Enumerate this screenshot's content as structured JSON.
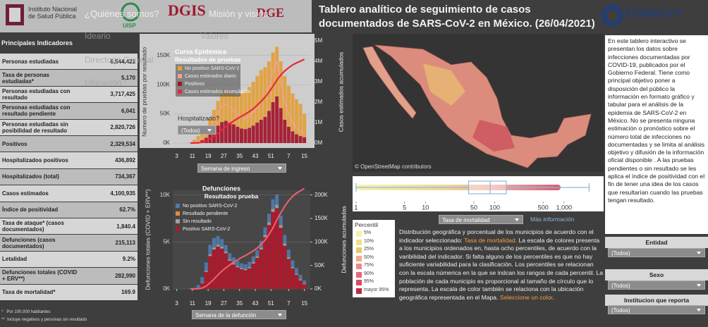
{
  "header": {
    "institutions": [
      "Instituto Nacional de Salud Pública",
      "UISP",
      "DGIS",
      "DGE",
      "CONACYT"
    ],
    "menu": [
      "¿Quiénes somos?",
      "Misión y visión",
      "Ideario",
      "Valores",
      "Directorio General",
      "Ubicación"
    ],
    "title": "Tablero analítico de seguimiento de casos documentados de SARS-CoV-2 en México. (26/04/2021)"
  },
  "indicators": {
    "title": "Principales Indicadores",
    "rows": [
      [
        "Personas estudiadas",
        "6,544,421"
      ],
      [
        "Tasa de personas estudiadas*",
        "5,170"
      ],
      [
        "Personas estudiadas con resultado",
        "3,717,425"
      ],
      [
        "Personas estudiadas con resultado pendiente",
        "6,041"
      ],
      [
        "Personas estudiadas sin posibilidad de resultado",
        "2,820,726"
      ],
      [
        "Positivos",
        "2,329,534"
      ],
      [
        "Hospitalizados positivos",
        "436,892"
      ],
      [
        "Hospitalizados (total)",
        "734,367"
      ],
      [
        "Casos estimados",
        "4,100,935"
      ],
      [
        "Índice de positividad",
        "62.7%"
      ],
      [
        "Tasa de ataque* (casos documentados)",
        "1,840.4"
      ],
      [
        "Defunciones (casos documentados)",
        "215,113"
      ],
      [
        "Letalidad",
        "9.2%"
      ],
      [
        "Defunciones totales (COVID + ERV**)",
        "282,990"
      ],
      [
        "Tasa de mortalidad*",
        "169.9"
      ]
    ],
    "footnotes": [
      "*   Por 100,000 habitantes",
      "**  Incluye negativos y personas sin resultado"
    ]
  },
  "chart_data": [
    {
      "type": "bar",
      "title": "Curva Epidémica",
      "subtitle": "Resultados de pruebas",
      "ylabel": "Numero de pruebas por resultado",
      "y2label": "Casos estimados acumulados",
      "x": [
        10,
        12,
        14,
        16,
        18,
        20,
        22,
        24,
        26,
        28,
        30,
        32,
        34,
        36,
        38,
        40,
        42,
        44,
        46,
        48,
        50,
        52,
        54,
        56,
        58,
        60,
        62,
        64,
        66,
        68
      ],
      "xlim": [
        1,
        71
      ],
      "xticks": [
        3,
        11,
        19,
        27,
        35,
        43,
        51,
        {
          "value": 60,
          "label": "7"
        },
        {
          "value": 68,
          "label": "15"
        }
      ],
      "ylim": [
        0,
        175000
      ],
      "yticks": [
        {
          "value": 0,
          "label": "0K"
        },
        {
          "value": 50000,
          "label": "50K"
        },
        {
          "value": 100000,
          "label": "100K"
        },
        {
          "value": 150000,
          "label": "150K"
        }
      ],
      "y2lim": [
        0,
        5000000
      ],
      "y2ticks": [
        {
          "value": 0,
          "label": "0M"
        },
        {
          "value": 1000000,
          "label": "1M"
        },
        {
          "value": 2000000,
          "label": "2M"
        },
        {
          "value": 3000000,
          "label": "3M"
        },
        {
          "value": 4000000,
          "label": "4M"
        },
        {
          "value": 5000000,
          "label": "5M"
        }
      ],
      "grid": true,
      "series": [
        {
          "name": "No positivo SARS-CoV-2",
          "color": "#e3a03c",
          "mark": "bar",
          "values": [
            1000,
            5000,
            10000,
            15000,
            20000,
            28000,
            35000,
            42000,
            48000,
            50000,
            50000,
            52000,
            55000,
            60000,
            65000,
            70000,
            75000,
            80000,
            85000,
            85000,
            85000,
            85000,
            85000,
            80000,
            75000,
            70000,
            65000,
            60000,
            55000,
            40000
          ]
        },
        {
          "name": "Casos estimados diario",
          "color": "#f0a0a0",
          "mark": "line",
          "values": [
            175,
            875,
            3500,
            8750,
            15750,
            26250,
            38500,
            52500,
            63000,
            66500,
            61250,
            56000,
            49000,
            43750,
            42000,
            45500,
            52500,
            61250,
            70000,
            78750,
            96250,
            122500,
            140000,
            105000,
            70000,
            49000,
            35000,
            26250,
            21000,
            17500
          ]
        },
        {
          "name": "Positivos",
          "color": "#a3142a",
          "mark": "bar",
          "values": [
            100,
            500,
            2000,
            5000,
            9000,
            15000,
            22000,
            30000,
            36000,
            38000,
            35000,
            32000,
            28000,
            25000,
            24000,
            26000,
            30000,
            35000,
            40000,
            45000,
            55000,
            70000,
            80000,
            60000,
            40000,
            28000,
            20000,
            15000,
            12000,
            10000
          ]
        },
        {
          "name": "Casos estimados acumulados",
          "color": "#e8283a",
          "mark": "line",
          "axis": "y2",
          "values": [
            0,
            2000,
            10000,
            40000,
            100000,
            200000,
            330000,
            480000,
            640000,
            800000,
            950000,
            1080000,
            1200000,
            1310000,
            1420000,
            1540000,
            1680000,
            1850000,
            2040000,
            2250000,
            2500000,
            2780000,
            3080000,
            3330000,
            3530000,
            3690000,
            3820000,
            3920000,
            4010000,
            4100000
          ]
        }
      ]
    },
    {
      "type": "bar",
      "title": "Defunciones",
      "subtitle": "Resultados prueba",
      "ylabel": "Defunciones totales (COVID + ERV**)",
      "y2label": "Defunciones acumuladas",
      "x": [
        10,
        12,
        14,
        16,
        18,
        20,
        22,
        24,
        26,
        28,
        30,
        32,
        34,
        36,
        38,
        40,
        42,
        44,
        46,
        48,
        50,
        52,
        54,
        56,
        58,
        60,
        62,
        64,
        66,
        68
      ],
      "xlim": [
        1,
        71
      ],
      "xticks": [
        3,
        11,
        19,
        27,
        35,
        43,
        51,
        {
          "value": 60,
          "label": "7"
        },
        {
          "value": 68,
          "label": "15"
        }
      ],
      "ylim": [
        0,
        10500
      ],
      "yticks": [
        {
          "value": 0,
          "label": "0K"
        },
        {
          "value": 5000,
          "label": "5K"
        },
        {
          "value": 10000,
          "label": "10K"
        }
      ],
      "y2lim": [
        0,
        210000
      ],
      "y2ticks": [
        {
          "value": 0,
          "label": "0K"
        },
        {
          "value": 50000,
          "label": "50K"
        },
        {
          "value": 100000,
          "label": "100K"
        },
        {
          "value": 150000,
          "label": "150K"
        },
        {
          "value": 200000,
          "label": "200K"
        }
      ],
      "grid": true,
      "series": [
        {
          "name": "No positivo SARS-CoV-2",
          "color": "#4f7cac",
          "mark": "bar",
          "values": [
            50,
            100,
            300,
            600,
            900,
            1000,
            1000,
            900,
            800,
            700,
            650,
            600,
            550,
            500,
            500,
            550,
            600,
            650,
            700,
            800,
            900,
            1000,
            1100,
            1000,
            900,
            800,
            700,
            600,
            500,
            300
          ]
        },
        {
          "name": "Resultado pendiente",
          "color": "#e8883a",
          "mark": "bar",
          "values": [
            0,
            0,
            0,
            0,
            0,
            0,
            0,
            0,
            0,
            0,
            0,
            0,
            0,
            0,
            0,
            0,
            0,
            0,
            0,
            0,
            0,
            0,
            0,
            0,
            0,
            5,
            10,
            20,
            40,
            60
          ]
        },
        {
          "name": "Sin resultado",
          "color": "#a0a0a0",
          "mark": "bar",
          "values": [
            0,
            5,
            20,
            60,
            120,
            200,
            220,
            220,
            200,
            180,
            160,
            150,
            140,
            130,
            130,
            140,
            160,
            180,
            210,
            260,
            300,
            340,
            360,
            300,
            240,
            180,
            130,
            100,
            70,
            40
          ]
        },
        {
          "name": "Positivo SARS-CoV-2",
          "color": "#b5172b",
          "mark": "bar",
          "values": [
            0,
            10,
            100,
            600,
            1800,
            3500,
            4200,
            4500,
            4300,
            3800,
            3000,
            2600,
            2300,
            2100,
            2000,
            2200,
            2700,
            3300,
            4200,
            5500,
            6800,
            8200,
            8600,
            6500,
            4600,
            3200,
            2200,
            1500,
            900,
            500
          ]
        }
      ],
      "line": {
        "color": "#f06070",
        "axis": "y2",
        "values": [
          0,
          50,
          400,
          2000,
          6000,
          13000,
          21000,
          30000,
          38000,
          45000,
          51000,
          57000,
          62000,
          67000,
          71000,
          76000,
          81000,
          87000,
          95000,
          104000,
          116000,
          130000,
          147000,
          162000,
          176000,
          188000,
          197000,
          204000,
          209000,
          214000
        ]
      }
    },
    {
      "type": "box",
      "xscale": "log",
      "xlim": [
        0.85,
        2500
      ],
      "xticks": [
        1,
        5,
        10,
        50,
        100,
        500,
        {
          "value": 1000,
          "label": "1,000"
        }
      ],
      "color": "#8fb8d8",
      "stats": {
        "min": 1,
        "q1": 42,
        "median": 86,
        "q3": 147,
        "max": 2300
      }
    }
  ],
  "controls": {
    "hospital_label": "Hospitalizado?",
    "hospital_value": "(Todos)",
    "epi_week": "Semana de ingreso",
    "death_week": "Semana de la defunción",
    "map_metric": "Tasa de mortalidad",
    "more_info": "Más información"
  },
  "map": {
    "credit": "© OpenStreetMap contributors"
  },
  "percentiles": {
    "title": "Percentil",
    "items": [
      {
        "label": "5%",
        "color": "#f7f1a8"
      },
      {
        "label": "10%",
        "color": "#eee08a"
      },
      {
        "label": "25%",
        "color": "#e8c870"
      },
      {
        "label": "50%",
        "color": "#f2aa8c"
      },
      {
        "label": "75%",
        "color": "#ea8a8a"
      },
      {
        "label": "90%",
        "color": "#e06a78"
      },
      {
        "label": "95%",
        "color": "#d84a60"
      },
      {
        "label": "mayor 95%",
        "color": "#c42840"
      }
    ]
  },
  "description": [
    "Distribución geográfica y porcentual de los municipios de acuerdo con el indicador seleccionado: ",
    "Tasa de mortalidad",
    ". La escala de colores presenta a los municipios ordenados en, hasta ocho percentiles, de acuerdo con la varibilidad del indicador. Si falta alguno de los percentiles es que no hay suficiente variabilidad para la clasificación. Los percentiles se relacionan con la escala númerica en la que se indcan los rangos de cada percentil. La población de cada municipio es proporcional al tamaño de círculo que lo representa. La escala de color también se relaciona con la ubicación geográfica representada en el Mapa. ",
    "Seleccione un color",
    "."
  ],
  "sidebar": {
    "text": "En este tablero interactivo se presentan los datos sobre infecciones documentadas por COVID-19, publicados por el Gobierno Federal. Tiene como principal objetivo poner a disposición del público la información en formato gráfico y tabular para el análisis de la epidemia de SARS-CoV-2 en México. No se presenta ninguna estimación o pronóstico sobre el número total de infecciones no documentadas y se limita al análisis objetivo y difusión de la información oficial disponible . A las pruebas pendientes o sin resultado se les aplica el índice de positividad con el fin de tener una idea de los casos que resultarían cuando las pruebas tengan resultado.",
    "filters": [
      {
        "label": "Entidad",
        "value": "(Todos)"
      },
      {
        "label": "Sexo",
        "value": "(Todos)"
      },
      {
        "label": "Institucion que reporta",
        "value": "(Todos)"
      }
    ]
  }
}
